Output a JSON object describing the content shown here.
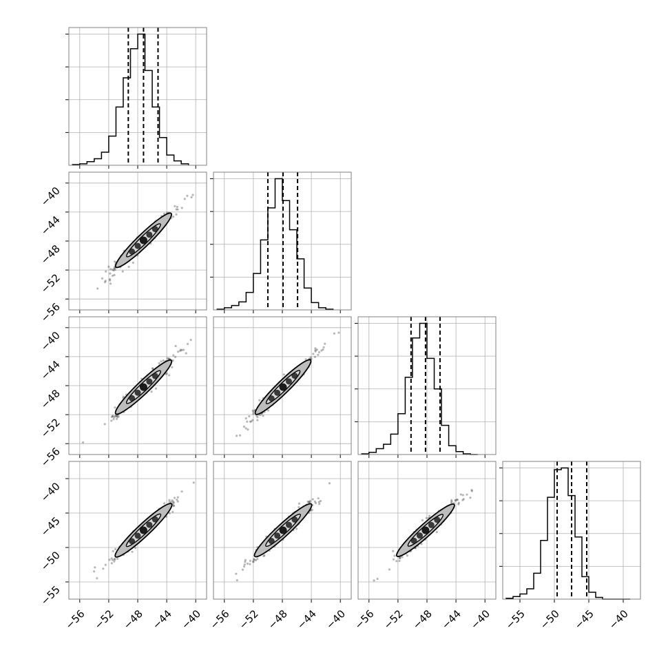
{
  "chart_data": {
    "type": "scatter",
    "kind": "corner-plot",
    "title": "",
    "n_params": 4,
    "colors": {
      "line": "#000000",
      "grid": "#b0b0b0",
      "frame": "#808080",
      "contour_fill": "#bdbdbd",
      "points": "#333333"
    },
    "grid": true,
    "params": [
      {
        "ticks": [
          -56,
          -52,
          -48,
          -44,
          -40
        ],
        "tick_labels": [
          "−56",
          "−52",
          "−48",
          "−44",
          "−40"
        ],
        "range": [
          -57.5,
          -38.5
        ],
        "median": -47.2,
        "q16": -49.3,
        "q84": -45.2
      },
      {
        "ticks": [
          -56,
          -52,
          -48,
          -44,
          -40
        ],
        "tick_labels": [
          "−56",
          "−52",
          "−48",
          "−44",
          "−40"
        ],
        "range": [
          -57.5,
          -38.5
        ],
        "median": -47.9,
        "q16": -50.0,
        "q84": -45.9
      },
      {
        "ticks": [
          -56,
          -52,
          -48,
          -44,
          -40
        ],
        "tick_labels": [
          "−56",
          "−52",
          "−48",
          "−44",
          "−40"
        ],
        "range": [
          -57.5,
          -38.5
        ],
        "median": -48.2,
        "q16": -50.2,
        "q84": -46.2
      },
      {
        "ticks": [
          -55,
          -50,
          -45,
          -40
        ],
        "tick_labels": [
          "−55",
          "−50",
          "−45",
          "−40"
        ],
        "range": [
          -57.5,
          -37.5
        ],
        "median": -47.5,
        "q16": -49.6,
        "q84": -45.3
      }
    ],
    "histograms": [
      {
        "bin_edges": [
          -57.0,
          -56.0,
          -55.0,
          -54.0,
          -53.0,
          -52.0,
          -51.0,
          -50.0,
          -49.0,
          -48.0,
          -47.0,
          -46.0,
          -45.0,
          -44.0,
          -43.0,
          -42.0,
          -41.0
        ],
        "counts": [
          1,
          2,
          5,
          9,
          18,
          40,
          80,
          120,
          160,
          180,
          130,
          80,
          38,
          14,
          6,
          2
        ]
      },
      {
        "bin_edges": [
          -57.0,
          -56.0,
          -55.0,
          -54.0,
          -53.0,
          -52.0,
          -51.0,
          -50.0,
          -49.0,
          -48.0,
          -47.0,
          -46.0,
          -45.0,
          -44.0,
          -43.0,
          -42.0,
          -41.0
        ],
        "counts": [
          1,
          3,
          6,
          11,
          24,
          50,
          96,
          140,
          180,
          150,
          110,
          70,
          30,
          10,
          3,
          1
        ]
      },
      {
        "bin_edges": [
          -57.0,
          -56.0,
          -55.0,
          -54.0,
          -53.0,
          -52.0,
          -51.0,
          -50.0,
          -49.0,
          -48.0,
          -47.0,
          -46.0,
          -45.0,
          -44.0,
          -43.0,
          -42.0,
          -41.0
        ],
        "counts": [
          1,
          3,
          8,
          14,
          28,
          56,
          106,
          160,
          180,
          132,
          90,
          40,
          12,
          4,
          1,
          0
        ]
      },
      {
        "bin_edges": [
          -57.0,
          -56.0,
          -55.0,
          -54.0,
          -53.0,
          -52.0,
          -51.0,
          -50.0,
          -49.0,
          -48.0,
          -47.0,
          -46.0,
          -45.0,
          -44.0,
          -43.0,
          -42.0,
          -41.0,
          -40.0,
          -39.0
        ],
        "counts": [
          1,
          3,
          6,
          12,
          30,
          68,
          118,
          150,
          152,
          120,
          72,
          26,
          8,
          2,
          0,
          0,
          0,
          0
        ]
      }
    ],
    "pairs": [
      {
        "row": 1,
        "col": 0,
        "slope": 0.97
      },
      {
        "row": 2,
        "col": 0,
        "slope": 0.96
      },
      {
        "row": 2,
        "col": 1,
        "slope": 0.98
      },
      {
        "row": 3,
        "col": 0,
        "slope": 0.99
      },
      {
        "row": 3,
        "col": 1,
        "slope": 0.97
      },
      {
        "row": 3,
        "col": 2,
        "slope": 0.95
      }
    ]
  }
}
